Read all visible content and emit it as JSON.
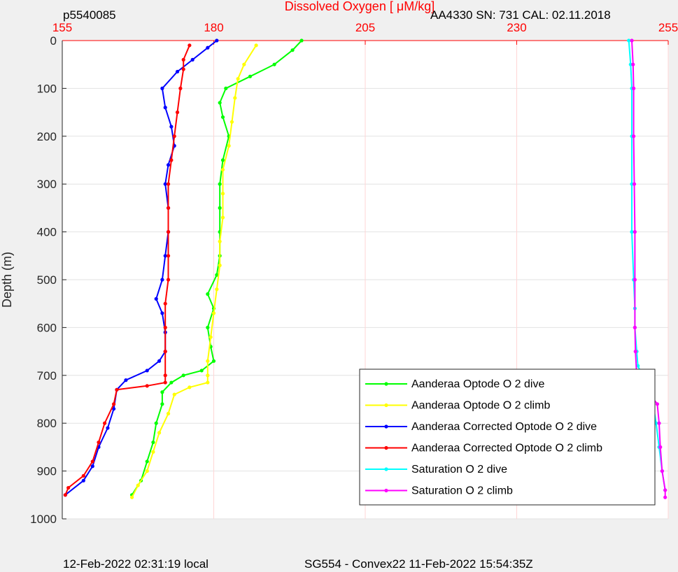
{
  "header": {
    "profile_id": "p5540085",
    "sensor_info": "AA4330   SN: 731   CAL: 02.11.2018"
  },
  "footer": {
    "local_time": "12-Feb-2022 02:31:19 local",
    "mission": "SG554 - Convex22 11-Feb-2022 15:54:35Z"
  },
  "chart_data": {
    "type": "line",
    "title": "Dissolved Oxygen [ μM/kg]",
    "xlabel": "Dissolved Oxygen [ μM/kg]",
    "ylabel": "Depth (m)",
    "xlim": [
      155,
      255
    ],
    "ylim": [
      0,
      1000
    ],
    "y_reversed": true,
    "x_axis_position": "top",
    "xticks": [
      155,
      180,
      205,
      230,
      255
    ],
    "yticks": [
      0,
      100,
      200,
      300,
      400,
      500,
      600,
      700,
      800,
      900,
      1000
    ],
    "grid": true,
    "legend_position": "lower-right",
    "series": [
      {
        "name": "Aanderaa Optode O 2 dive",
        "color": "#00ff00",
        "points": [
          [
            194.5,
            0
          ],
          [
            193,
            20
          ],
          [
            190,
            50
          ],
          [
            186,
            75
          ],
          [
            182,
            100
          ],
          [
            181,
            130
          ],
          [
            181.5,
            160
          ],
          [
            182.5,
            200
          ],
          [
            181.5,
            250
          ],
          [
            181,
            300
          ],
          [
            181,
            350
          ],
          [
            181,
            400
          ],
          [
            181,
            450
          ],
          [
            180.5,
            490
          ],
          [
            179,
            530
          ],
          [
            180,
            560
          ],
          [
            179,
            600
          ],
          [
            179.5,
            640
          ],
          [
            180,
            670
          ],
          [
            178,
            690
          ],
          [
            175,
            700
          ],
          [
            173,
            715
          ],
          [
            171.5,
            735
          ],
          [
            171.5,
            760
          ],
          [
            170.5,
            800
          ],
          [
            170,
            840
          ],
          [
            169,
            880
          ],
          [
            168,
            920
          ],
          [
            166.5,
            950
          ]
        ]
      },
      {
        "name": "Aanderaa Optode O 2 climb",
        "color": "#ffff00",
        "points": [
          [
            187,
            10
          ],
          [
            185,
            50
          ],
          [
            184,
            80
          ],
          [
            183.5,
            120
          ],
          [
            183,
            170
          ],
          [
            182.5,
            220
          ],
          [
            181.5,
            270
          ],
          [
            181.5,
            320
          ],
          [
            181.5,
            370
          ],
          [
            181,
            420
          ],
          [
            181,
            470
          ],
          [
            180.5,
            520
          ],
          [
            180,
            570
          ],
          [
            179.5,
            620
          ],
          [
            179,
            670
          ],
          [
            179,
            700
          ],
          [
            179,
            715
          ],
          [
            176,
            725
          ],
          [
            173.5,
            740
          ],
          [
            172.5,
            780
          ],
          [
            171,
            820
          ],
          [
            170,
            860
          ],
          [
            169,
            900
          ],
          [
            167.5,
            930
          ],
          [
            166.5,
            955
          ]
        ]
      },
      {
        "name": "Aanderaa Corrected Optode O 2 dive",
        "color": "#0000ff",
        "points": [
          [
            180.5,
            0
          ],
          [
            179,
            15
          ],
          [
            176.5,
            40
          ],
          [
            174,
            65
          ],
          [
            171.5,
            100
          ],
          [
            172,
            140
          ],
          [
            173,
            180
          ],
          [
            173.5,
            220
          ],
          [
            172.5,
            260
          ],
          [
            172,
            300
          ],
          [
            172.5,
            350
          ],
          [
            172.5,
            400
          ],
          [
            172,
            450
          ],
          [
            171.5,
            500
          ],
          [
            170.5,
            540
          ],
          [
            171.5,
            570
          ],
          [
            172,
            610
          ],
          [
            172,
            650
          ],
          [
            171,
            670
          ],
          [
            169,
            690
          ],
          [
            165.5,
            710
          ],
          [
            164,
            730
          ],
          [
            163.5,
            770
          ],
          [
            162.5,
            810
          ],
          [
            161,
            850
          ],
          [
            160,
            890
          ],
          [
            158.5,
            920
          ],
          [
            155.5,
            950
          ]
        ]
      },
      {
        "name": "Aanderaa Corrected Optode O 2 climb",
        "color": "#ff0000",
        "points": [
          [
            176,
            10
          ],
          [
            175,
            40
          ],
          [
            175,
            60
          ],
          [
            174.5,
            100
          ],
          [
            174,
            150
          ],
          [
            173.5,
            200
          ],
          [
            173,
            250
          ],
          [
            172.5,
            300
          ],
          [
            172.5,
            350
          ],
          [
            172.5,
            400
          ],
          [
            172.5,
            450
          ],
          [
            172.5,
            500
          ],
          [
            172,
            550
          ],
          [
            172,
            600
          ],
          [
            172,
            650
          ],
          [
            172,
            700
          ],
          [
            172,
            715
          ],
          [
            169,
            722
          ],
          [
            164,
            730
          ],
          [
            163.5,
            760
          ],
          [
            162,
            800
          ],
          [
            161,
            840
          ],
          [
            160,
            880
          ],
          [
            158.5,
            910
          ],
          [
            156,
            935
          ],
          [
            155.5,
            950
          ]
        ]
      },
      {
        "name": "Saturation O 2 dive",
        "color": "#00ffff",
        "points": [
          [
            248.5,
            0
          ],
          [
            248.8,
            50
          ],
          [
            249,
            100
          ],
          [
            249,
            200
          ],
          [
            249,
            300
          ],
          [
            249,
            400
          ],
          [
            249.3,
            500
          ],
          [
            249.5,
            560
          ],
          [
            249.5,
            600
          ],
          [
            249.8,
            650
          ],
          [
            250,
            680
          ],
          [
            250.7,
            700
          ],
          [
            251.5,
            730
          ],
          [
            252.5,
            760
          ],
          [
            253,
            800
          ],
          [
            253.5,
            850
          ],
          [
            254,
            900
          ],
          [
            254.5,
            940
          ]
        ]
      },
      {
        "name": "Saturation O 2 climb",
        "color": "#ff00ff",
        "points": [
          [
            249,
            0
          ],
          [
            249.2,
            50
          ],
          [
            249.3,
            100
          ],
          [
            249.3,
            200
          ],
          [
            249.4,
            300
          ],
          [
            249.5,
            400
          ],
          [
            249.5,
            500
          ],
          [
            249.5,
            600
          ],
          [
            249.6,
            650
          ],
          [
            249.8,
            700
          ],
          [
            250.3,
            725
          ],
          [
            252,
            740
          ],
          [
            253.2,
            760
          ],
          [
            253.5,
            800
          ],
          [
            253.7,
            850
          ],
          [
            254,
            900
          ],
          [
            254.5,
            940
          ],
          [
            254.5,
            955
          ]
        ]
      }
    ]
  }
}
